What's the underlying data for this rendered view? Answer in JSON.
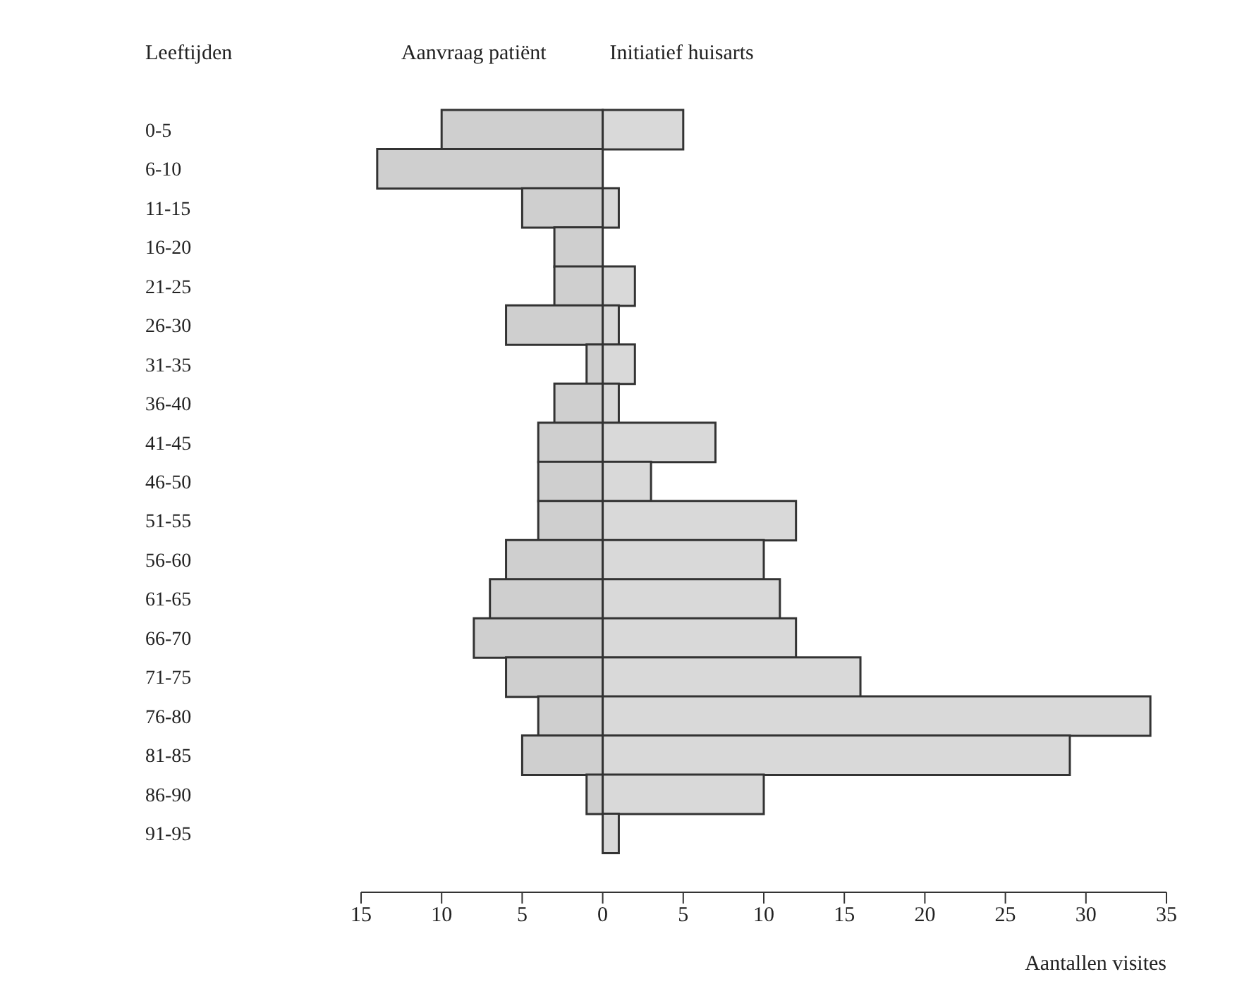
{
  "chart_data": {
    "type": "bar",
    "orientation": "horizontal",
    "stacked": true,
    "ylabel": "Leeftijden",
    "xlabel": "Aantallen visites",
    "legend": "top",
    "categories": [
      "0-5",
      "6-10",
      "11-15",
      "16-20",
      "21-25",
      "26-30",
      "31-35",
      "36-40",
      "41-45",
      "46-50",
      "51-55",
      "56-60",
      "61-65",
      "66-70",
      "71-75",
      "76-80",
      "81-85",
      "86-90",
      "91-95"
    ],
    "series": [
      {
        "name": "Aanvraag patiënt",
        "color": "#cfcfcf",
        "values": [
          -10,
          -14,
          -5,
          -3,
          -3,
          -6,
          -1,
          -3,
          -4,
          -4,
          -4,
          -6,
          -7,
          -8,
          -6,
          -4,
          -5,
          -1,
          0
        ]
      },
      {
        "name": "Initiatief huisarts",
        "color": "#d9d9d9",
        "values": [
          5,
          0,
          1,
          0,
          2,
          1,
          2,
          1,
          7,
          3,
          12,
          10,
          11,
          12,
          16,
          34,
          29,
          10,
          1
        ]
      }
    ],
    "xlim": [
      -15,
      35
    ],
    "xticks": [
      {
        "value": -15,
        "label": "15"
      },
      {
        "value": -10,
        "label": "10"
      },
      {
        "value": -5,
        "label": "5"
      },
      0,
      5,
      10,
      15,
      20,
      25,
      30,
      35
    ]
  }
}
